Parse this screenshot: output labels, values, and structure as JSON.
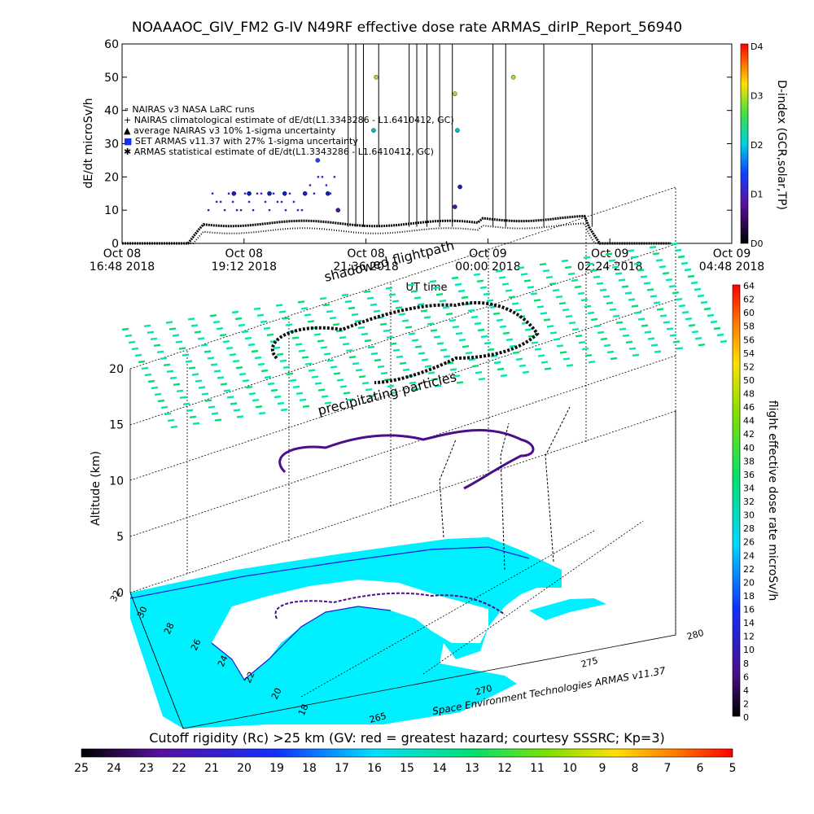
{
  "chart_data": [
    {
      "type": "scatter",
      "title": "NOAAAOC_GIV_FM2 G-IV    N49RF   effective dose rate ARMAS_dirIP_Report_56940",
      "ylabel": "dE/dt microSv/h",
      "xlabel": "UT time",
      "ylim": [
        0,
        60
      ],
      "yticks": [
        "0",
        "10",
        "20",
        "30",
        "40",
        "50",
        "60"
      ],
      "xticks": [
        {
          "t": 0,
          "day": "Oct 08",
          "time": "16:48 2018"
        },
        {
          "t": 2.4,
          "day": "Oct 08",
          "time": "19:12 2018"
        },
        {
          "t": 4.8,
          "day": "Oct 08",
          "time": "21:36 2018"
        },
        {
          "t": 7.2,
          "day": "Oct 09",
          "time": "00:00 2018"
        },
        {
          "t": 9.6,
          "day": "Oct 09",
          "time": "02:24 2018"
        },
        {
          "t": 12.0,
          "day": "Oct 09",
          "time": "04:48 2018"
        }
      ],
      "xlim_hours": [
        0,
        12
      ],
      "legend": [
        "NAIRAS v3 NASA LaRC runs",
        "NAIRAS climatological estimate of dE/dt(L1.3343286 - L1.6410412, GC)",
        "average NAIRAS v3 10% 1-sigma uncertainty",
        "SET ARMAS v11.37 with 27% 1-sigma uncertainty",
        "ARMAS statistical estimate of dE/dt(L1.3343286 - L1.6410412, GC)"
      ],
      "legend_position": "upper-left",
      "dindex_ticks": [
        "D4",
        "D3",
        "D2",
        "D1",
        "D0"
      ],
      "dindex_label": "D-index (GCR,solar,TP)",
      "armas_points": [
        {
          "t": 2.2,
          "v": 15
        },
        {
          "t": 2.5,
          "v": 15
        },
        {
          "t": 2.9,
          "v": 15
        },
        {
          "t": 3.2,
          "v": 15
        },
        {
          "t": 3.6,
          "v": 15
        },
        {
          "t": 3.85,
          "v": 25
        },
        {
          "t": 4.05,
          "v": 15
        },
        {
          "t": 4.25,
          "v": 10
        },
        {
          "t": 5.0,
          "v": 50
        },
        {
          "t": 4.95,
          "v": 34
        },
        {
          "t": 6.55,
          "v": 45
        },
        {
          "t": 6.6,
          "v": 34
        },
        {
          "t": 6.65,
          "v": 17
        },
        {
          "t": 6.55,
          "v": 11
        },
        {
          "t": 7.7,
          "v": 50
        }
      ],
      "spike_hours": [
        4.45,
        4.6,
        4.75,
        5.05,
        5.65,
        5.8,
        6.0,
        6.25,
        6.5,
        7.3,
        7.55,
        8.3,
        9.25
      ]
    },
    {
      "type": "scatter",
      "title": "flight effective dose rate microSv/h",
      "zlabel": "Altitude (km)",
      "zticks": [
        "0",
        "5",
        "10",
        "15",
        "20"
      ],
      "lat_ticks": [
        "32",
        "30",
        "28",
        "26",
        "24",
        "22",
        "20",
        "18"
      ],
      "lon_ticks": [
        "265",
        "270",
        "275",
        "280"
      ],
      "annotations": [
        "shadowed flightpath",
        "precipitating particles"
      ],
      "credit": "Space Environment Technologies ARMAS v11.37",
      "dose_colorbar_ticks": [
        "0",
        "2",
        "4",
        "6",
        "8",
        "10",
        "12",
        "14",
        "16",
        "18",
        "20",
        "22",
        "24",
        "26",
        "28",
        "30",
        "32",
        "34",
        "36",
        "38",
        "40",
        "42",
        "44",
        "46",
        "48",
        "50",
        "52",
        "54",
        "56",
        "58",
        "60",
        "62",
        "64"
      ],
      "dose_colorbar_range": [
        0,
        64
      ]
    }
  ],
  "cutoff_bar": {
    "title": "Cutoff rigidity (Rc) >25 km (GV: red = greatest hazard; courtesy SSSRC; Kp=3)",
    "ticks": [
      "25",
      "24",
      "23",
      "22",
      "21",
      "20",
      "19",
      "18",
      "17",
      "16",
      "15",
      "14",
      "13",
      "12",
      "11",
      "10",
      "9",
      "8",
      "7",
      "6",
      "5"
    ]
  }
}
